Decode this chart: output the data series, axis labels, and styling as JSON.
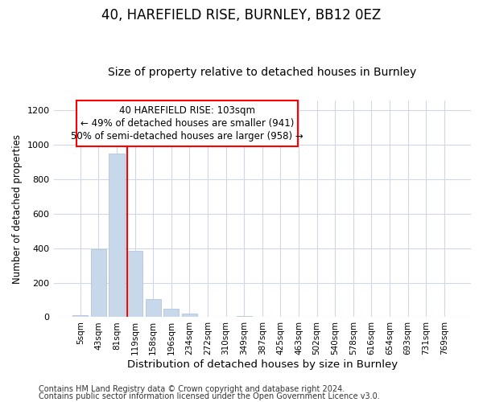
{
  "title1": "40, HAREFIELD RISE, BURNLEY, BB12 0EZ",
  "title2": "Size of property relative to detached houses in Burnley",
  "xlabel": "Distribution of detached houses by size in Burnley",
  "ylabel": "Number of detached properties",
  "bar_labels": [
    "5sqm",
    "43sqm",
    "81sqm",
    "119sqm",
    "158sqm",
    "196sqm",
    "234sqm",
    "272sqm",
    "310sqm",
    "349sqm",
    "387sqm",
    "425sqm",
    "463sqm",
    "502sqm",
    "540sqm",
    "578sqm",
    "616sqm",
    "654sqm",
    "693sqm",
    "731sqm",
    "769sqm"
  ],
  "bar_values": [
    10,
    395,
    950,
    385,
    105,
    50,
    22,
    0,
    0,
    8,
    0,
    0,
    0,
    0,
    0,
    0,
    0,
    0,
    0,
    0,
    0
  ],
  "bar_color": "#c8d8eb",
  "bar_edge_color": "#aabdd8",
  "annotation_line1": "40 HAREFIELD RISE: 103sqm",
  "annotation_line2": "← 49% of detached houses are smaller (941)",
  "annotation_line3": "50% of semi-detached houses are larger (958) →",
  "red_line_x": 2.58,
  "ylim": [
    0,
    1260
  ],
  "yticks": [
    0,
    200,
    400,
    600,
    800,
    1000,
    1200
  ],
  "footer1": "Contains HM Land Registry data © Crown copyright and database right 2024.",
  "footer2": "Contains public sector information licensed under the Open Government Licence v3.0.",
  "bg_color": "#ffffff",
  "grid_color": "#d0d8e8",
  "title1_fontsize": 12,
  "title2_fontsize": 10,
  "xlabel_fontsize": 9.5,
  "ylabel_fontsize": 8.5,
  "annotation_fontsize": 8.5,
  "footer_fontsize": 7
}
